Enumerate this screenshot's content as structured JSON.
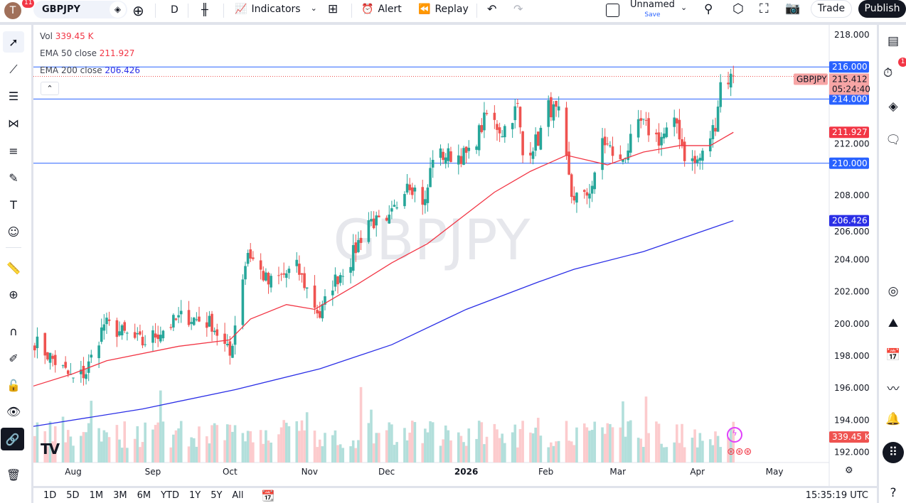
{
  "header": {
    "avatar_letter": "T",
    "notifications": "11",
    "symbol": "GBPJPY",
    "interval": "D",
    "indicators_label": "Indicators",
    "alert_label": "Alert",
    "replay_label": "Replay",
    "layout_name": "Unnamed",
    "layout_save": "Save",
    "trade_label": "Trade",
    "publish_label": "Publish"
  },
  "legend": {
    "vol_label": "Vol",
    "vol_value": "339.45 K",
    "ema50_label": "EMA 50 close",
    "ema50_value": "211.927",
    "ema200_label": "EMA 200 close",
    "ema200_value": "206.426"
  },
  "watermark": "GBPJPY",
  "price_axis": {
    "ticks": [
      "218.000",
      "216.000",
      "214.000",
      "212.000",
      "210.000",
      "208.000",
      "206.000",
      "204.000",
      "202.000",
      "200.000",
      "198.000",
      "196.000",
      "194.000",
      "192.000"
    ],
    "labels": {
      "h216": "216.000",
      "h214": "214.000",
      "h210": "210.000",
      "ema50": "211.927",
      "ema200": "206.426",
      "last": "215.412",
      "countdown": "05:24:40",
      "symbol": "GBPJPY",
      "vol": "339.45 K"
    }
  },
  "time_axis": {
    "ticks": [
      "Aug",
      "Sep",
      "Oct",
      "Nov",
      "Dec",
      "2026",
      "Feb",
      "Mar",
      "Apr",
      "May"
    ]
  },
  "bottom": {
    "ranges": [
      "1D",
      "5D",
      "1M",
      "3M",
      "6M",
      "YTD",
      "1Y",
      "5Y",
      "All"
    ],
    "clock": "15:35:19 UTC"
  },
  "right_toolbar": {
    "alerts_badge": "1"
  },
  "colors": {
    "up": "#26a69a",
    "down": "#ef5350",
    "ema50": "#f23645",
    "ema200": "#2a2ee6",
    "hline": "#2962ff",
    "vol_up": "#b2dfdb",
    "vol_down": "#fccbcd"
  },
  "chart_data": {
    "type": "candlestick",
    "symbol": "GBPJPY",
    "interval": "1D",
    "ylim": [
      191.5,
      219
    ],
    "horizontal_lines": [
      216,
      214,
      210
    ],
    "last_price": 215.412,
    "close_path": [
      {
        "date": "2025-07-17",
        "close": 198.9
      },
      {
        "date": "2025-08-01",
        "close": 196.5
      },
      {
        "date": "2025-08-06",
        "close": 197.0
      },
      {
        "date": "2025-08-13",
        "close": 200.0
      },
      {
        "date": "2025-08-28",
        "close": 198.8
      },
      {
        "date": "2025-09-13",
        "close": 200.5
      },
      {
        "date": "2025-09-24",
        "close": 200.0
      },
      {
        "date": "2025-10-01",
        "close": 198.0
      },
      {
        "date": "2025-10-06",
        "close": 203.0
      },
      {
        "date": "2025-10-08",
        "close": 204.5
      },
      {
        "date": "2025-10-16",
        "close": 202.5
      },
      {
        "date": "2025-10-27",
        "close": 203.5
      },
      {
        "date": "2025-11-05",
        "close": 200.5
      },
      {
        "date": "2025-11-10",
        "close": 202.5
      },
      {
        "date": "2025-11-17",
        "close": 204.0
      },
      {
        "date": "2025-11-24",
        "close": 206.5
      },
      {
        "date": "2025-12-01",
        "close": 206.0
      },
      {
        "date": "2025-12-09",
        "close": 209.0
      },
      {
        "date": "2025-12-16",
        "close": 207.5
      },
      {
        "date": "2025-12-19",
        "close": 210.5
      },
      {
        "date": "2025-12-26",
        "close": 210.5
      },
      {
        "date": "2026-01-02",
        "close": 210.5
      },
      {
        "date": "2026-01-09",
        "close": 213.0
      },
      {
        "date": "2026-01-15",
        "close": 212.0
      },
      {
        "date": "2026-01-21",
        "close": 213.5
      },
      {
        "date": "2026-01-23",
        "close": 210.5
      },
      {
        "date": "2026-01-29",
        "close": 211.5
      },
      {
        "date": "2026-02-02",
        "close": 213.5
      },
      {
        "date": "2026-02-06",
        "close": 213.0
      },
      {
        "date": "2026-02-09",
        "close": 210.0
      },
      {
        "date": "2026-02-11",
        "close": 208.0
      },
      {
        "date": "2026-02-16",
        "close": 207.8
      },
      {
        "date": "2026-02-20",
        "close": 209.0
      },
      {
        "date": "2026-02-23",
        "close": 211.5
      },
      {
        "date": "2026-03-02",
        "close": 210.0
      },
      {
        "date": "2026-03-05",
        "close": 211.0
      },
      {
        "date": "2026-03-10",
        "close": 212.5
      },
      {
        "date": "2026-03-17",
        "close": 211.5
      },
      {
        "date": "2026-03-24",
        "close": 212.5
      },
      {
        "date": "2026-03-27",
        "close": 210.5
      },
      {
        "date": "2026-03-31",
        "close": 210.0
      },
      {
        "date": "2026-04-03",
        "close": 210.5
      },
      {
        "date": "2026-04-08",
        "close": 212.5
      },
      {
        "date": "2026-04-10",
        "close": 215.0
      },
      {
        "date": "2026-04-15",
        "close": 215.412
      }
    ],
    "ema50": [
      {
        "date": "2025-07-16",
        "value": 196.1
      },
      {
        "date": "2025-08-01",
        "value": 196.9
      },
      {
        "date": "2025-08-14",
        "value": 197.7
      },
      {
        "date": "2025-09-11",
        "value": 198.6
      },
      {
        "date": "2025-10-01",
        "value": 199.0
      },
      {
        "date": "2025-10-09",
        "value": 200.3
      },
      {
        "date": "2025-10-23",
        "value": 201.2
      },
      {
        "date": "2025-11-03",
        "value": 200.9
      },
      {
        "date": "2025-11-20",
        "value": 202.5
      },
      {
        "date": "2025-12-03",
        "value": 203.8
      },
      {
        "date": "2025-12-17",
        "value": 205.0
      },
      {
        "date": "2026-01-12",
        "value": 208.2
      },
      {
        "date": "2026-01-26",
        "value": 209.5
      },
      {
        "date": "2026-02-09",
        "value": 210.5
      },
      {
        "date": "2026-02-25",
        "value": 209.9
      },
      {
        "date": "2026-03-11",
        "value": 210.7
      },
      {
        "date": "2026-03-25",
        "value": 211.1
      },
      {
        "date": "2026-04-06",
        "value": 211.1
      },
      {
        "date": "2026-04-15",
        "value": 211.927
      }
    ],
    "ema200": [
      {
        "date": "2025-07-16",
        "value": 193.6
      },
      {
        "date": "2025-08-28",
        "value": 194.7
      },
      {
        "date": "2025-10-03",
        "value": 195.9
      },
      {
        "date": "2025-11-05",
        "value": 197.2
      },
      {
        "date": "2025-12-03",
        "value": 198.7
      },
      {
        "date": "2026-01-01",
        "value": 200.9
      },
      {
        "date": "2026-01-29",
        "value": 202.6
      },
      {
        "date": "2026-02-12",
        "value": 203.4
      },
      {
        "date": "2026-03-11",
        "value": 204.5
      },
      {
        "date": "2026-04-15",
        "value": 206.426
      }
    ],
    "volume_last": "339.45K"
  }
}
